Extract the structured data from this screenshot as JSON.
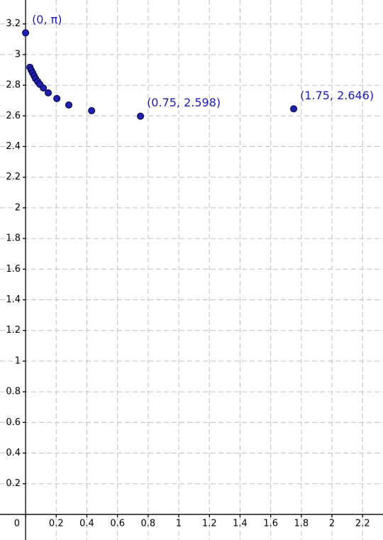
{
  "chart_data": {
    "type": "scatter",
    "x": [
      0,
      0.028,
      0.037,
      0.046,
      0.056,
      0.065,
      0.079,
      0.093,
      0.116,
      0.148,
      0.204,
      0.282,
      0.431,
      0.75,
      1.75
    ],
    "values": [
      3.1416,
      2.917,
      2.898,
      2.88,
      2.861,
      2.843,
      2.824,
      2.806,
      2.782,
      2.75,
      2.713,
      2.671,
      2.634,
      2.598,
      2.646
    ],
    "point_labels": [
      "(0, π)",
      null,
      null,
      null,
      null,
      null,
      null,
      null,
      null,
      null,
      null,
      null,
      null,
      "(0.75, 2.598)",
      "(1.75, 2.646)"
    ],
    "color": "#1f1fb0",
    "label_color": "#1c1cb4",
    "xlim": [
      -0.167,
      2.333
    ],
    "ylim": [
      -0.167,
      3.356
    ],
    "xticks": [
      0,
      0.2,
      0.4,
      0.6,
      0.8,
      1,
      1.2,
      1.4,
      1.6,
      1.8,
      2,
      2.2
    ],
    "yticks": [
      0.2,
      0.4,
      0.6,
      0.8,
      1,
      1.2,
      1.4,
      1.6,
      1.8,
      2,
      2.2,
      2.4,
      2.6,
      2.8,
      3,
      3.2
    ],
    "grid": true
  }
}
